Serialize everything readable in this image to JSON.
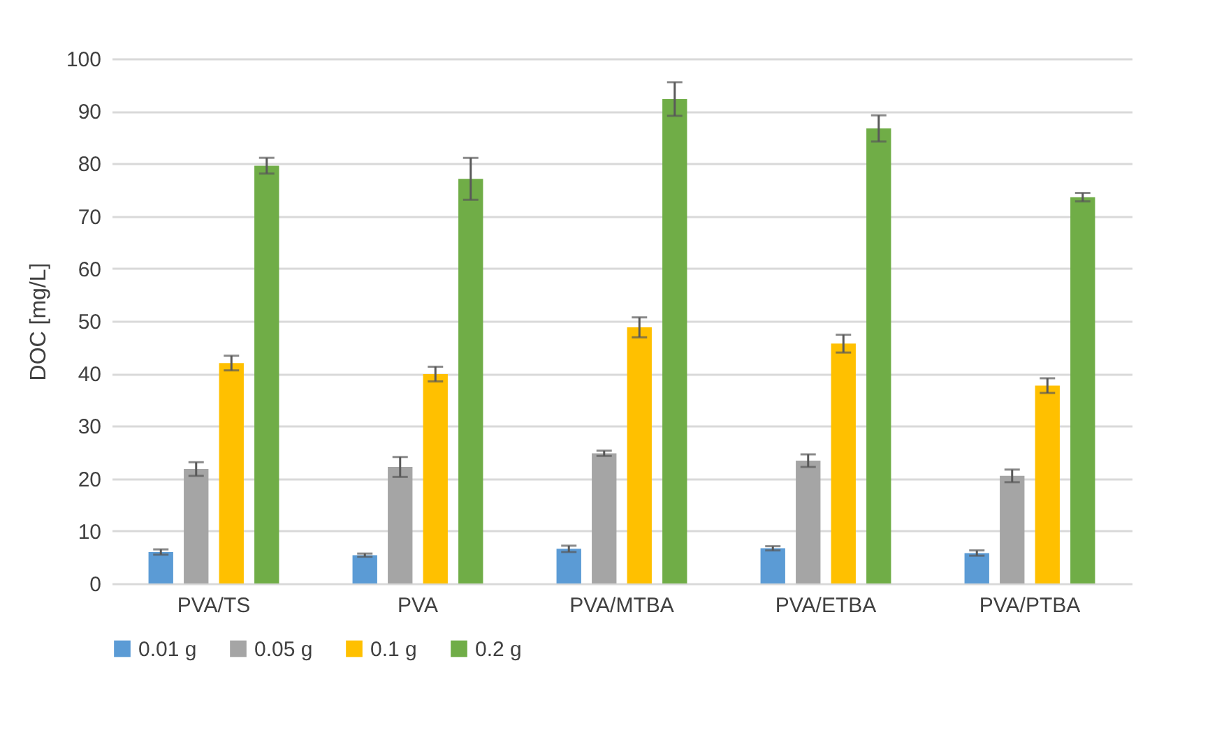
{
  "chart_data": {
    "type": "bar",
    "ylabel": "DOC [mg/L]",
    "categories": [
      "PVA/TS",
      "PVA",
      "PVA/MTBA",
      "PVA/ETBA",
      "PVA/PTBA"
    ],
    "series": [
      {
        "name": "0.01 g",
        "color": "#5b9bd5",
        "values": [
          6.0,
          5.4,
          6.6,
          6.7,
          5.8
        ],
        "errors": [
          0.5,
          0.3,
          0.6,
          0.4,
          0.5
        ]
      },
      {
        "name": "0.05 g",
        "color": "#a5a5a5",
        "values": [
          21.8,
          22.2,
          24.8,
          23.4,
          20.5
        ],
        "errors": [
          1.3,
          1.9,
          0.5,
          1.2,
          1.2
        ]
      },
      {
        "name": "0.1 g",
        "color": "#ffc000",
        "values": [
          42.0,
          39.9,
          48.8,
          45.7,
          37.7
        ],
        "errors": [
          1.4,
          1.4,
          1.9,
          1.7,
          1.4
        ]
      },
      {
        "name": "0.2 g",
        "color": "#70ad47",
        "values": [
          79.6,
          77.1,
          92.3,
          86.7,
          73.6
        ],
        "errors": [
          1.5,
          4.0,
          3.2,
          2.5,
          0.8
        ]
      }
    ],
    "ylim": [
      0,
      100
    ],
    "yticks": [
      0,
      10,
      20,
      30,
      40,
      50,
      60,
      70,
      80,
      90,
      100
    ],
    "grid": "y",
    "legend": "bottom"
  }
}
